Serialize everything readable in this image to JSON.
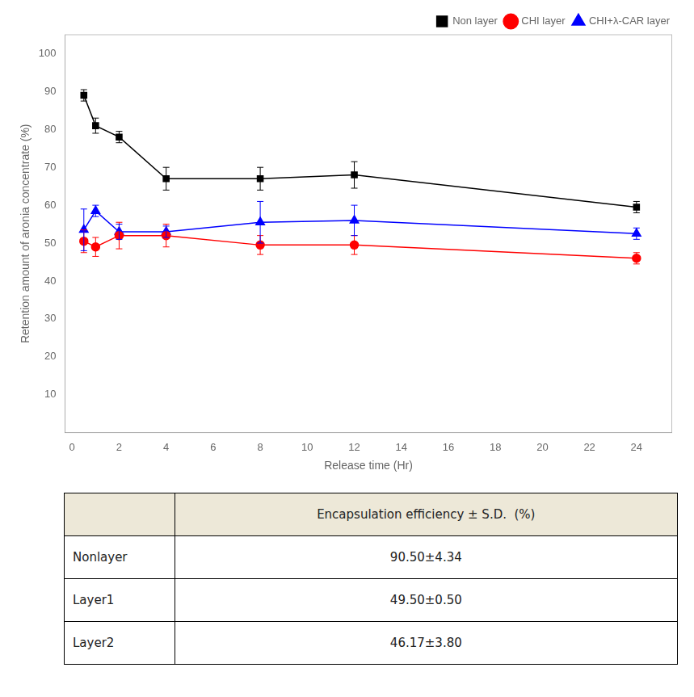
{
  "chart_data": {
    "type": "line",
    "x_label": "Release time (Hr)",
    "y_label": "Retention amount of aronia concentrate (%)",
    "series": [
      {
        "name": "Non layer",
        "color": "#000000",
        "marker": "square",
        "x": [
          0.5,
          1,
          2,
          4,
          8,
          12,
          24
        ],
        "values": [
          89,
          81,
          78,
          67,
          67,
          68,
          59.5
        ],
        "yerr": [
          1.5,
          2.0,
          1.5,
          3.0,
          3.0,
          3.5,
          1.5
        ]
      },
      {
        "name": "CHI layer",
        "color": "#ff0000",
        "marker": "circle",
        "x": [
          0.5,
          1,
          2,
          4,
          8,
          12,
          24
        ],
        "values": [
          50.5,
          49,
          52,
          52,
          49.5,
          49.5,
          46
        ],
        "yerr": [
          3.0,
          2.5,
          3.5,
          3.0,
          2.5,
          2.5,
          1.5
        ]
      },
      {
        "name": "CHI+λ-CAR layer",
        "color": "#0000ff",
        "marker": "triangle",
        "x": [
          0.5,
          1,
          2,
          4,
          8,
          12,
          24
        ],
        "values": [
          53.5,
          58.5,
          53,
          53,
          55.5,
          56,
          52.5
        ],
        "yerr": [
          5.5,
          1.5,
          2.0,
          1.5,
          5.5,
          4.0,
          1.5
        ]
      }
    ],
    "xlim": [
      -0.3,
      25.5
    ],
    "ylim": [
      0,
      105
    ],
    "xticks": [
      0,
      2,
      4,
      6,
      8,
      10,
      12,
      14,
      16,
      18,
      20,
      22,
      24
    ],
    "yticks": [
      10,
      20,
      30,
      40,
      50,
      60,
      70,
      80,
      90,
      100
    ],
    "grid": false,
    "legend": "upper right",
    "table": {
      "header": "Encapsulation efficiency ± S.D.  (%)",
      "header_color": "#ede8d8",
      "rows": [
        [
          "Nonlayer",
          "90.50±4.34"
        ],
        [
          "Layer1",
          "49.50±0.50"
        ],
        [
          "Layer2",
          "46.17±3.80"
        ]
      ]
    }
  }
}
